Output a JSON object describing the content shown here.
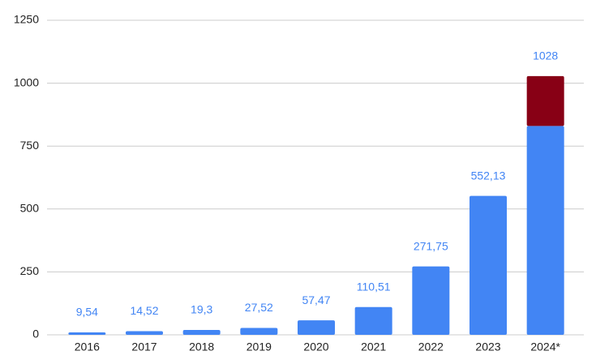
{
  "chart_data": {
    "type": "stacked_bar",
    "categories": [
      "2016",
      "2017",
      "2018",
      "2019",
      "2020",
      "2021",
      "2022",
      "2023",
      "2024*"
    ],
    "series": [
      {
        "color": "#4285f4",
        "values": [
          9.54,
          14.52,
          19.3,
          27.52,
          57.47,
          110.51,
          271.75,
          552.13,
          830
        ]
      },
      {
        "color": "#880015",
        "values": [
          null,
          null,
          null,
          null,
          null,
          null,
          null,
          null,
          198
        ]
      }
    ],
    "totals": [
      9.54,
      14.52,
      19.3,
      27.52,
      57.47,
      110.51,
      271.75,
      552.13,
      1028
    ],
    "total_labels": [
      "9,54",
      "14,52",
      "19,3",
      "27,52",
      "57,47",
      "110,51",
      "271,75",
      "552,13",
      "1028"
    ],
    "ylim": [
      0,
      1250
    ],
    "yticks": [
      0,
      250,
      500,
      750,
      1000,
      1250
    ],
    "grid": true
  }
}
